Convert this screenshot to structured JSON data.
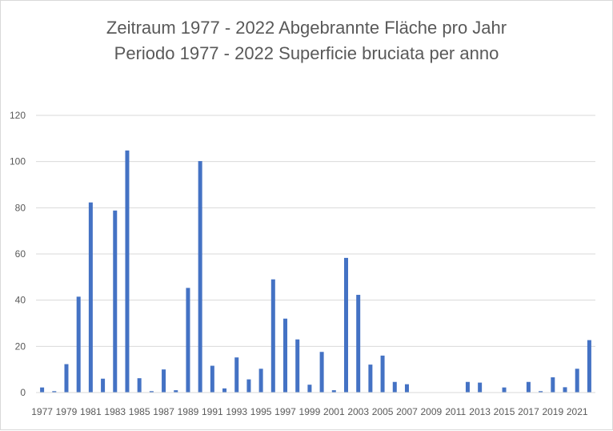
{
  "chart_data": {
    "type": "bar",
    "title": "Zeitraum 1977 - 2022 Abgebrannte Fläche pro Jahr",
    "subtitle": "Periodo 1977 - 2022 Superficie bruciata per anno",
    "xlabel": "",
    "ylabel": "",
    "ylim": [
      0,
      120
    ],
    "yticks": [
      0,
      20,
      40,
      60,
      80,
      100,
      120
    ],
    "grid": true,
    "legend": "none",
    "bar_color": "#4472c4",
    "categories": [
      "1977",
      "1978",
      "1979",
      "1980",
      "1981",
      "1982",
      "1983",
      "1984",
      "1985",
      "1986",
      "1987",
      "1988",
      "1989",
      "1990",
      "1991",
      "1992",
      "1993",
      "1994",
      "1995",
      "1996",
      "1997",
      "1998",
      "1999",
      "2000",
      "2001",
      "2002",
      "2003",
      "2004",
      "2005",
      "2006",
      "2007",
      "2008",
      "2009",
      "2010",
      "2011",
      "2012",
      "2013",
      "2014",
      "2015",
      "2016",
      "2017",
      "2018",
      "2019",
      "2020",
      "2021",
      "2022"
    ],
    "x_tick_labels": [
      "1977",
      "1979",
      "1981",
      "1983",
      "1985",
      "1987",
      "1989",
      "1991",
      "1993",
      "1995",
      "1997",
      "1999",
      "2001",
      "2003",
      "2005",
      "2007",
      "2009",
      "2011",
      "2013",
      "2015",
      "2017",
      "2019",
      "2021"
    ],
    "values": [
      2.2,
      0.6,
      12.3,
      41.5,
      82.3,
      6.0,
      78.8,
      104.8,
      6.2,
      0.6,
      10.0,
      1.0,
      45.3,
      100.2,
      11.6,
      1.8,
      15.2,
      5.7,
      10.3,
      49.0,
      32.0,
      23.0,
      3.4,
      17.6,
      1.0,
      58.3,
      42.3,
      12.1,
      16.0,
      4.6,
      3.6,
      0,
      0,
      0,
      0,
      4.6,
      4.3,
      0,
      2.2,
      0,
      4.6,
      0.6,
      6.6,
      2.3,
      10.3,
      22.7
    ]
  }
}
